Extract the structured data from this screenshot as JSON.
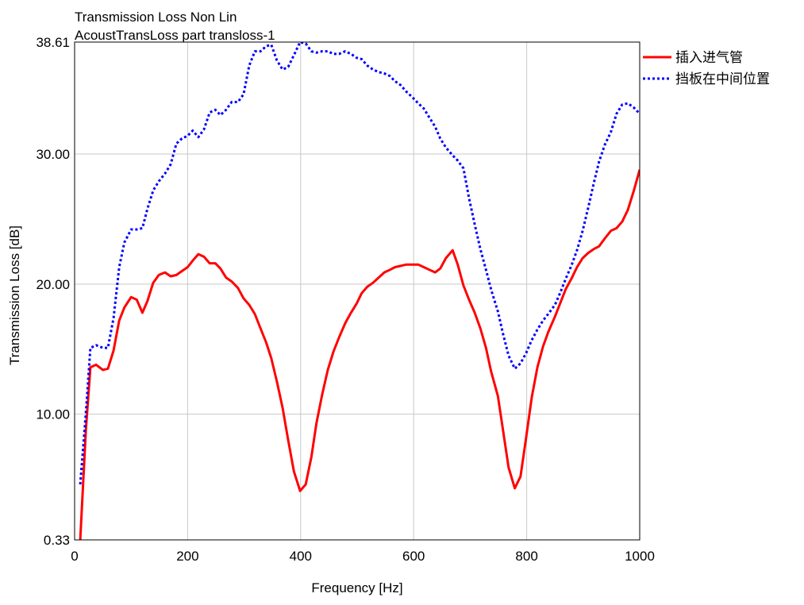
{
  "chart_data": {
    "type": "line",
    "title": [
      "Transmission Loss Non Lin",
      "AcoustTransLoss part transloss-1"
    ],
    "xlabel": "Frequency [Hz]",
    "ylabel": "Transmission Loss [dB]",
    "xlim": [
      0,
      1000
    ],
    "ylim": [
      0.33,
      38.61
    ],
    "xticks": [
      0,
      200,
      400,
      600,
      800,
      1000
    ],
    "xtick_labels": [
      "0",
      "200",
      "400",
      "600",
      "800",
      "1000"
    ],
    "yticks": [
      0.33,
      10,
      20,
      30,
      38.61
    ],
    "ytick_labels": [
      "0.33",
      "10.00",
      "20.00",
      "30.00",
      "38.61"
    ],
    "grid": true,
    "legend_position": "right-outside-top",
    "x": [
      10,
      20,
      28,
      38,
      50,
      59,
      69,
      79,
      88,
      100,
      110,
      120,
      129,
      139,
      149,
      160,
      170,
      180,
      190,
      200,
      209,
      219,
      229,
      239,
      249,
      258,
      268,
      278,
      289,
      299,
      309,
      319,
      329,
      339,
      348,
      358,
      368,
      378,
      388,
      399,
      409,
      419,
      428,
      438,
      448,
      458,
      468,
      479,
      489,
      499,
      508,
      518,
      528,
      538,
      548,
      558,
      567,
      577,
      587,
      597,
      608,
      618,
      628,
      638,
      647,
      657,
      669,
      678,
      688,
      698,
      708,
      718,
      728,
      737,
      749,
      758,
      768,
      779,
      789,
      799,
      809,
      819,
      829,
      838,
      850,
      860,
      869,
      879,
      889,
      899,
      909,
      919,
      928,
      938,
      949,
      959,
      969,
      979,
      989,
      1000
    ],
    "series": [
      {
        "name": "插入进气管",
        "color": "#ff0000",
        "style": "solid",
        "values": [
          0.33,
          8.8,
          13.6,
          13.8,
          13.4,
          13.5,
          14.9,
          17.2,
          18.2,
          19.0,
          18.8,
          17.8,
          18.7,
          20.1,
          20.7,
          20.9,
          20.6,
          20.7,
          21.0,
          21.3,
          21.8,
          22.3,
          22.1,
          21.6,
          21.6,
          21.2,
          20.5,
          20.2,
          19.7,
          18.9,
          18.4,
          17.7,
          16.6,
          15.5,
          14.3,
          12.5,
          10.5,
          8.0,
          5.6,
          4.1,
          4.6,
          6.7,
          9.3,
          11.5,
          13.4,
          14.8,
          15.9,
          17.0,
          17.8,
          18.5,
          19.3,
          19.8,
          20.1,
          20.5,
          20.9,
          21.1,
          21.3,
          21.4,
          21.5,
          21.5,
          21.5,
          21.3,
          21.1,
          20.9,
          21.2,
          22.0,
          22.6,
          21.5,
          19.9,
          18.8,
          17.8,
          16.6,
          15.1,
          13.3,
          11.4,
          8.8,
          5.9,
          4.3,
          5.2,
          8.2,
          11.3,
          13.6,
          15.2,
          16.3,
          17.5,
          18.6,
          19.6,
          20.4,
          21.3,
          22.0,
          22.4,
          22.7,
          22.9,
          23.5,
          24.1,
          24.3,
          24.8,
          25.7,
          27.1,
          28.8
        ]
      },
      {
        "name": "挡板在中间位置",
        "color": "#0000ff",
        "style": "dotted",
        "values": [
          4.6,
          10.1,
          15.1,
          15.3,
          15.1,
          15.1,
          17.4,
          21.3,
          23.2,
          24.2,
          24.2,
          24.3,
          25.8,
          27.2,
          27.9,
          28.5,
          29.2,
          30.8,
          31.2,
          31.4,
          31.8,
          31.3,
          31.9,
          33.2,
          33.4,
          33.0,
          33.4,
          34.0,
          34.0,
          34.6,
          36.8,
          37.9,
          37.9,
          38.3,
          38.4,
          37.2,
          36.5,
          36.7,
          37.6,
          38.61,
          38.5,
          37.9,
          37.8,
          37.9,
          37.9,
          37.7,
          37.7,
          37.9,
          37.7,
          37.4,
          37.3,
          36.8,
          36.5,
          36.3,
          36.2,
          36.0,
          35.6,
          35.3,
          34.8,
          34.4,
          33.9,
          33.5,
          32.8,
          32.1,
          31.2,
          30.5,
          29.9,
          29.5,
          28.9,
          26.6,
          24.6,
          22.7,
          21.1,
          19.6,
          17.9,
          16.2,
          14.5,
          13.5,
          13.9,
          14.7,
          15.7,
          16.5,
          17.2,
          17.7,
          18.4,
          19.4,
          20.4,
          21.4,
          22.6,
          24.1,
          25.9,
          27.8,
          29.4,
          30.7,
          31.7,
          33.1,
          33.8,
          33.9,
          33.6,
          33.1
        ]
      }
    ]
  }
}
